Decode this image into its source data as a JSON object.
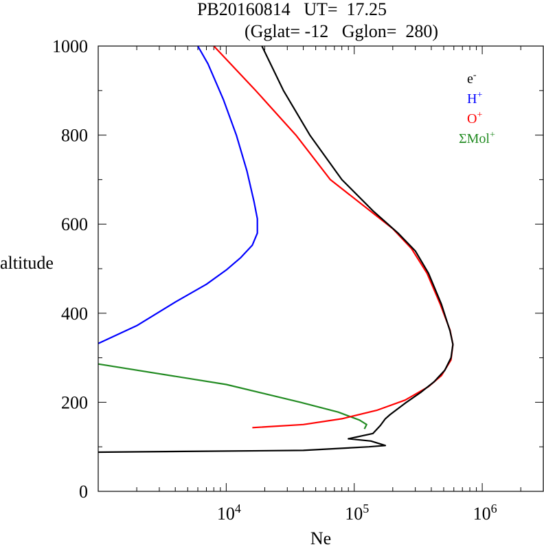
{
  "title_line1": "PB20160814   UT=  17.25",
  "title_line2": "(Gglat= -12   Gglon=  280)",
  "colors": {
    "e": "#000000",
    "h": "#0000ff",
    "o": "#ff0000",
    "mol": "#228b22"
  },
  "chart_data": {
    "type": "line",
    "xlabel": "Ne",
    "ylabel": "altitude",
    "xscale": "log",
    "xlim": [
      1000,
      3000000
    ],
    "ylim": [
      0,
      1000
    ],
    "y_ticks": [
      0,
      200,
      400,
      600,
      800,
      1000
    ],
    "x_tick_labels": [
      {
        "base": "10",
        "exp": "4",
        "value": 10000
      },
      {
        "base": "10",
        "exp": "5",
        "value": 100000
      },
      {
        "base": "10",
        "exp": "6",
        "value": 1000000
      }
    ],
    "legend_position": "top-right",
    "series": [
      {
        "key": "e",
        "name": "e",
        "sup": "-",
        "color": "#000000",
        "points": [
          [
            1000,
            88
          ],
          [
            40000,
            92
          ],
          [
            130000,
            100
          ],
          [
            175000,
            103
          ],
          [
            135000,
            113
          ],
          [
            90000,
            118
          ],
          [
            140000,
            130
          ],
          [
            160000,
            148
          ],
          [
            175000,
            163
          ],
          [
            190000,
            172
          ],
          [
            250000,
            198
          ],
          [
            330000,
            222
          ],
          [
            420000,
            246
          ],
          [
            510000,
            272
          ],
          [
            570000,
            300
          ],
          [
            590000,
            330
          ],
          [
            560000,
            360
          ],
          [
            480000,
            420
          ],
          [
            380000,
            490
          ],
          [
            300000,
            540
          ],
          [
            220000,
            580
          ],
          [
            140000,
            630
          ],
          [
            80000,
            700
          ],
          [
            45000,
            800
          ],
          [
            28000,
            900
          ],
          [
            19000,
            1000
          ]
        ]
      },
      {
        "key": "h",
        "name": "H",
        "sup": "+",
        "color": "#0000ff",
        "points": [
          [
            1000,
            332
          ],
          [
            2000,
            372
          ],
          [
            4000,
            425
          ],
          [
            7000,
            465
          ],
          [
            10000,
            497
          ],
          [
            13000,
            525
          ],
          [
            16000,
            553
          ],
          [
            17500,
            580
          ],
          [
            17500,
            612
          ],
          [
            16500,
            650
          ],
          [
            14500,
            720
          ],
          [
            12000,
            800
          ],
          [
            9500,
            880
          ],
          [
            7200,
            960
          ],
          [
            6000,
            1000
          ]
        ]
      },
      {
        "key": "o",
        "name": "O",
        "sup": "+",
        "color": "#ff0000",
        "points": [
          [
            16000,
            143
          ],
          [
            40000,
            150
          ],
          [
            80000,
            163
          ],
          [
            150000,
            182
          ],
          [
            250000,
            205
          ],
          [
            380000,
            235
          ],
          [
            480000,
            260
          ],
          [
            570000,
            295
          ],
          [
            590000,
            330
          ],
          [
            560000,
            362
          ],
          [
            470000,
            420
          ],
          [
            370000,
            490
          ],
          [
            280000,
            545
          ],
          [
            200000,
            590
          ],
          [
            120000,
            640
          ],
          [
            65000,
            700
          ],
          [
            35000,
            800
          ],
          [
            17000,
            900
          ],
          [
            8000,
            1000
          ]
        ]
      },
      {
        "key": "mol",
        "name": "ΣMol",
        "sup": "+",
        "color": "#228b22",
        "points": [
          [
            1000,
            286
          ],
          [
            10000,
            240
          ],
          [
            38000,
            200
          ],
          [
            75000,
            178
          ],
          [
            110000,
            160
          ],
          [
            125000,
            150
          ],
          [
            120000,
            140
          ]
        ]
      }
    ]
  }
}
